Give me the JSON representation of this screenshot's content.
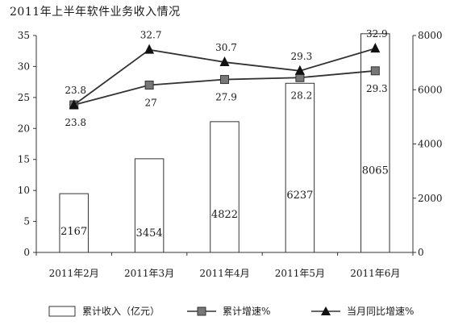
{
  "chart_data": {
    "type": "bar+line",
    "title": "2011年上半年软件业务收入情况",
    "categories": [
      "2011年2月",
      "2011年3月",
      "2011年4月",
      "2011年5月",
      "2011年6月"
    ],
    "bar_series": {
      "name": "累计收入（亿元）",
      "axis": "right",
      "values": [
        2167,
        3454,
        4822,
        6237,
        8065
      ]
    },
    "line_series": [
      {
        "name": "累计增速%",
        "axis": "left",
        "marker": "square",
        "values": [
          23.8,
          27,
          27.9,
          28.2,
          29.3
        ]
      },
      {
        "name": "当月同比增速%",
        "axis": "left",
        "marker": "triangle",
        "values": [
          23.8,
          32.7,
          30.7,
          29.3,
          32.9
        ]
      }
    ],
    "left_axis": {
      "ylim": [
        0,
        35
      ],
      "ticks": [
        "0",
        "5",
        "10",
        "15",
        "20",
        "25",
        "30",
        "35"
      ]
    },
    "right_axis": {
      "ylim": [
        0,
        8000
      ],
      "ticks": [
        "0",
        "2000",
        "4000",
        "6000",
        "8000"
      ]
    },
    "colors": {
      "bar_fill": "#ffffff",
      "bar_stroke": "#333333",
      "line": "#333333",
      "square_marker": "#777777",
      "triangle_marker": "#111111"
    },
    "legend_position": "bottom",
    "grid": false
  }
}
